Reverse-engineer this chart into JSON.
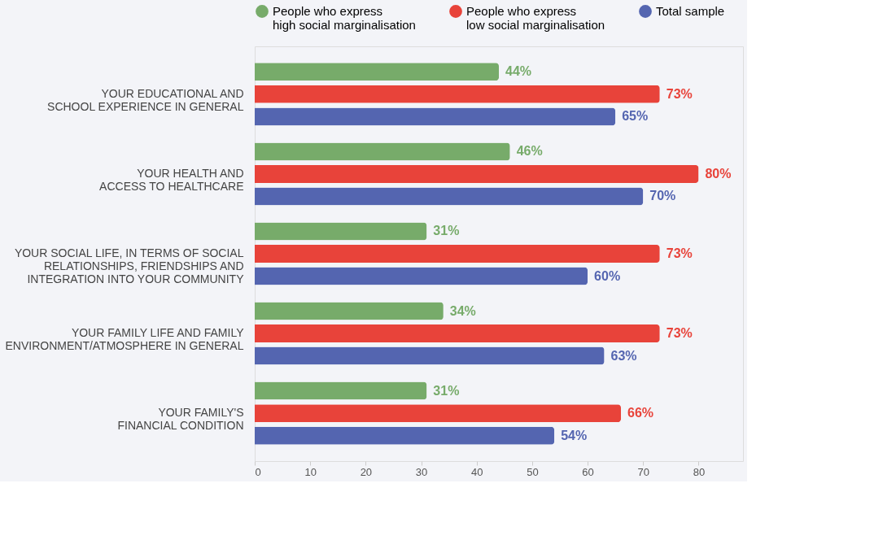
{
  "chart_data": {
    "type": "bar",
    "orientation": "horizontal",
    "categories": [
      "YOUR EDUCATIONAL AND\nSCHOOL EXPERIENCE IN GENERAL",
      "YOUR HEALTH AND\nACCESS TO HEALTHCARE",
      "YOUR SOCIAL LIFE, IN TERMS OF SOCIAL\nRELATIONSHIPS, FRIENDSHIPS AND\nINTEGRATION INTO YOUR COMMUNITY",
      "YOUR FAMILY LIFE AND FAMILY\nENVIRONMENT/ATMOSPHERE IN GENERAL",
      "YOUR FAMILY'S\nFINANCIAL CONDITION"
    ],
    "series": [
      {
        "name": "People who express high social marginalisation",
        "color": "#77ab6a",
        "values": [
          44,
          46,
          31,
          34,
          31
        ],
        "value_labels": [
          "44%",
          "46%",
          "31%",
          "34%",
          "31%"
        ]
      },
      {
        "name": "People who express low social marginalisation",
        "color": "#e8433a",
        "values": [
          73,
          80,
          73,
          73,
          66
        ],
        "value_labels": [
          "73%",
          "80%",
          "73%",
          "73%",
          "66%"
        ]
      },
      {
        "name": "Total sample",
        "color": "#5465b0",
        "values": [
          65,
          70,
          60,
          63,
          54
        ],
        "value_labels": [
          "65%",
          "70%",
          "60%",
          "63%",
          "54%"
        ]
      }
    ],
    "xlim": [
      0,
      88
    ],
    "xticks": [
      0,
      10,
      20,
      30,
      40,
      50,
      60,
      70,
      80
    ],
    "grid": false,
    "legend": "top"
  }
}
